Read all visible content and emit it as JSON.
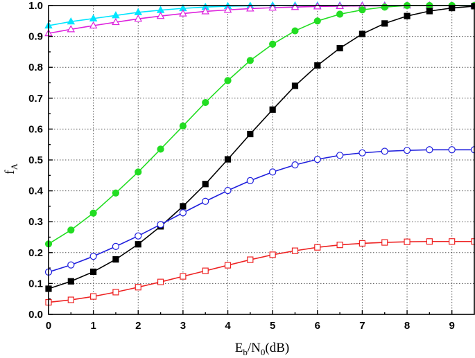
{
  "chart_data": {
    "type": "line",
    "xlabel": {
      "main": "E",
      "sub1": "b",
      "mid": "/N",
      "sub2": "0",
      "tail": "(dB)"
    },
    "ylabel": {
      "main": "f",
      "sub": "A"
    },
    "xlim": [
      0,
      9.5
    ],
    "ylim": [
      0.0,
      1.0
    ],
    "xticks": [
      0,
      1,
      2,
      3,
      4,
      5,
      6,
      7,
      8,
      9
    ],
    "xtick_labels": [
      "0",
      "1",
      "2",
      "3",
      "4",
      "5",
      "6",
      "7",
      "8",
      "9"
    ],
    "yticks": [
      0.0,
      0.1,
      0.2,
      0.3,
      0.4,
      0.5,
      0.6,
      0.7,
      0.8,
      0.9,
      1.0
    ],
    "ytick_labels": [
      "0.0",
      "0.1",
      "0.2",
      "0.3",
      "0.4",
      "0.5",
      "0.6",
      "0.7",
      "0.8",
      "0.9",
      "1.0"
    ],
    "grid": true,
    "x": [
      0,
      0.5,
      1,
      1.5,
      2,
      2.5,
      3,
      3.5,
      4,
      4.5,
      5,
      5.5,
      6,
      6.5,
      7,
      7.5,
      8,
      8.5,
      9,
      9.5
    ],
    "series": [
      {
        "color": "#00e5ff",
        "marker": "triangle-filled",
        "values": [
          0.935,
          0.948,
          0.958,
          0.968,
          0.978,
          0.985,
          0.991,
          0.995,
          0.998,
          0.999,
          1.0,
          1.0,
          1.0,
          1.0,
          1.0,
          1.0,
          1.0,
          1.0,
          1.0,
          1.0
        ]
      },
      {
        "color": "#dd22dd",
        "marker": "triangle-open",
        "values": [
          0.91,
          0.923,
          0.935,
          0.946,
          0.957,
          0.966,
          0.974,
          0.981,
          0.986,
          0.99,
          0.993,
          0.995,
          0.997,
          0.998,
          0.999,
          0.999,
          1.0,
          1.0,
          1.0,
          1.0
        ]
      },
      {
        "color": "#22dd22",
        "marker": "circle-filled",
        "values": [
          0.228,
          0.273,
          0.328,
          0.393,
          0.461,
          0.535,
          0.61,
          0.686,
          0.757,
          0.822,
          0.875,
          0.918,
          0.95,
          0.972,
          0.986,
          0.995,
          1.0,
          1.0,
          1.0,
          1.0
        ]
      },
      {
        "color": "#000000",
        "marker": "square-filled",
        "values": [
          0.083,
          0.107,
          0.138,
          0.178,
          0.227,
          0.285,
          0.35,
          0.422,
          0.502,
          0.584,
          0.663,
          0.74,
          0.806,
          0.862,
          0.908,
          0.942,
          0.966,
          0.982,
          0.992,
          0.998
        ]
      },
      {
        "color": "#1f1fdd",
        "marker": "circle-open",
        "values": [
          0.137,
          0.16,
          0.188,
          0.22,
          0.254,
          0.291,
          0.329,
          0.366,
          0.401,
          0.433,
          0.461,
          0.484,
          0.502,
          0.515,
          0.523,
          0.528,
          0.531,
          0.533,
          0.533,
          0.533
        ]
      },
      {
        "color": "#ee2222",
        "marker": "square-open",
        "values": [
          0.039,
          0.047,
          0.058,
          0.072,
          0.088,
          0.105,
          0.123,
          0.141,
          0.159,
          0.177,
          0.193,
          0.206,
          0.217,
          0.225,
          0.23,
          0.233,
          0.235,
          0.236,
          0.236,
          0.236
        ]
      }
    ]
  }
}
